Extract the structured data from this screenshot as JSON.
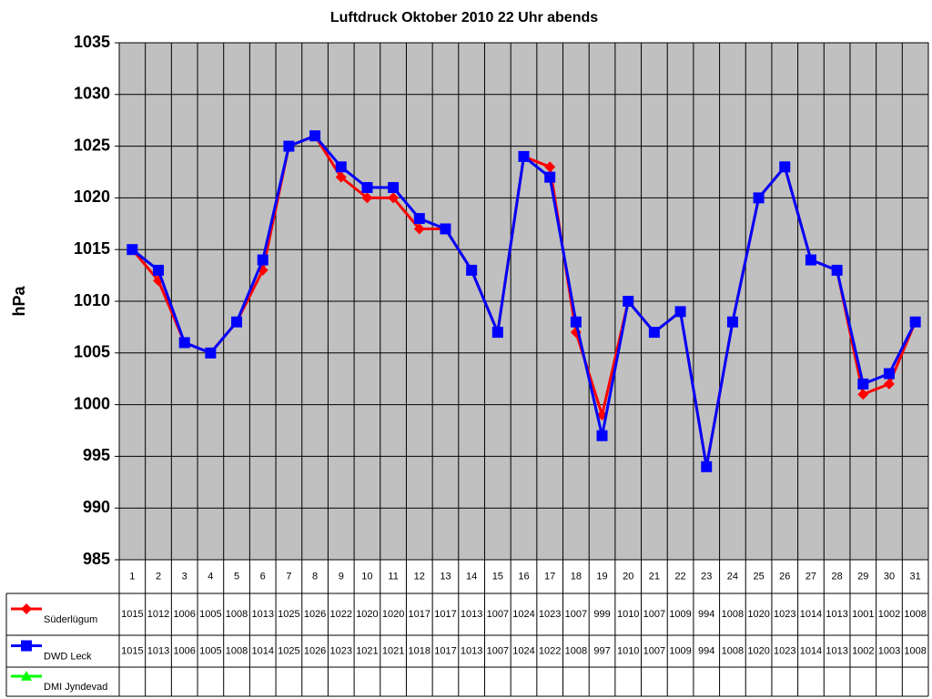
{
  "chart_data": {
    "type": "line",
    "title": "Luftdruck Oktober 2010 22 Uhr abends",
    "y_label": "hPa",
    "categories": [
      "1",
      "2",
      "3",
      "4",
      "5",
      "6",
      "7",
      "8",
      "9",
      "10",
      "11",
      "12",
      "13",
      "14",
      "15",
      "16",
      "17",
      "18",
      "19",
      "20",
      "21",
      "22",
      "23",
      "24",
      "25",
      "26",
      "27",
      "28",
      "29",
      "30",
      "31"
    ],
    "series": [
      {
        "name": "Süderlügum",
        "color": "#ff0000",
        "marker": "diamond",
        "values": [
          1015,
          1012,
          1006,
          1005,
          1008,
          1013,
          1025,
          1026,
          1022,
          1020,
          1020,
          1017,
          1017,
          1013,
          1007,
          1024,
          1023,
          1007,
          999,
          1010,
          1007,
          1009,
          994,
          1008,
          1020,
          1023,
          1014,
          1013,
          1001,
          1002,
          1008
        ]
      },
      {
        "name": "DWD Leck",
        "color": "#0000ff",
        "marker": "square",
        "values": [
          1015,
          1013,
          1006,
          1005,
          1008,
          1014,
          1025,
          1026,
          1023,
          1021,
          1021,
          1018,
          1017,
          1013,
          1007,
          1024,
          1022,
          1008,
          997,
          1010,
          1007,
          1009,
          994,
          1008,
          1020,
          1023,
          1014,
          1013,
          1002,
          1003,
          1008
        ]
      },
      {
        "name": "DMI Jyndevad",
        "color": "#00ff00",
        "marker": "triangle",
        "values": [
          null,
          null,
          null,
          null,
          null,
          null,
          null,
          null,
          null,
          null,
          null,
          null,
          null,
          null,
          null,
          null,
          null,
          null,
          null,
          null,
          null,
          null,
          null,
          null,
          null,
          null,
          null,
          null,
          null,
          null,
          null
        ]
      }
    ],
    "ylim": [
      985,
      1035
    ],
    "yticks": [
      985,
      990,
      995,
      1000,
      1005,
      1010,
      1015,
      1020,
      1025,
      1030,
      1035
    ],
    "grid": true,
    "data_table": true
  }
}
